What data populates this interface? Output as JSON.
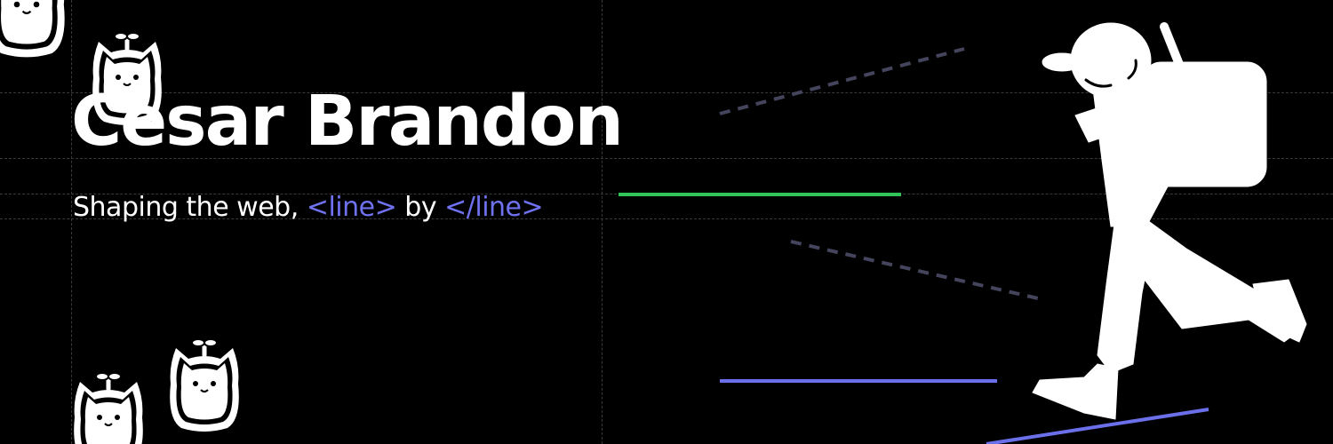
{
  "header": {
    "title": "Cesar Brandon",
    "subtitle_prefix": "Shaping the web,",
    "tag_open": "<line>",
    "connector": "by",
    "tag_close": "</line>"
  },
  "colors": {
    "background": "#000000",
    "text": "#ffffff",
    "tag": "#6f72f0",
    "line_green": "#2fc35a",
    "line_blue": "#6b70ea",
    "line_dashed": "#44445c",
    "guide": "#3a3a3a"
  },
  "icons": [
    "sprout-bunny-icon",
    "hiker-silhouette-icon"
  ]
}
